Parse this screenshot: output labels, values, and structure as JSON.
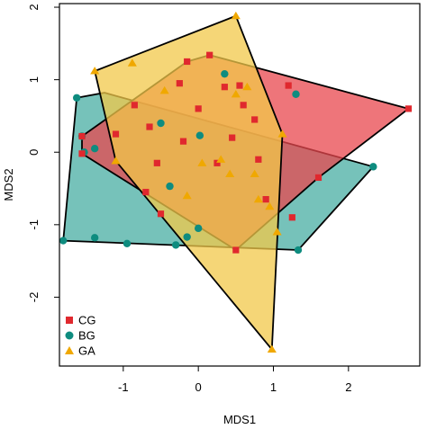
{
  "chart_data": {
    "type": "scatter",
    "title": "",
    "xlabel": "MDS1",
    "ylabel": "MDS2",
    "xlim": [
      -1.85,
      2.95
    ],
    "ylim": [
      -2.95,
      2.05
    ],
    "xticks": [
      -1,
      0,
      1,
      2
    ],
    "yticks": [
      -2,
      -1,
      0,
      1,
      2
    ],
    "xtick_labels": [
      "-1",
      "0",
      "1",
      "2"
    ],
    "ytick_labels": [
      "-2",
      "-1",
      "0",
      "1",
      "2"
    ],
    "grid": false,
    "legend_position": "bottom-left",
    "series": [
      {
        "name": "BG",
        "marker": "circle",
        "fill_color": "#0E8C7F",
        "hull_color": "#1A9A8C",
        "hull_opacity": 0.6,
        "hull": [
          [
            -1.62,
            0.75
          ],
          [
            -1.25,
            0.82
          ],
          [
            2.33,
            -0.2
          ],
          [
            1.33,
            -1.35
          ],
          [
            -1.8,
            -1.22
          ]
        ],
        "points": [
          [
            -1.62,
            0.75
          ],
          [
            -1.55,
            0.22
          ],
          [
            -1.52,
            0.0
          ],
          [
            -1.38,
            -1.18
          ],
          [
            -0.95,
            -1.26
          ],
          [
            -0.3,
            -1.28
          ],
          [
            -0.15,
            -1.17
          ],
          [
            0.0,
            -1.05
          ],
          [
            0.02,
            0.23
          ],
          [
            0.35,
            1.08
          ],
          [
            -0.38,
            -0.47
          ],
          [
            1.3,
            0.8
          ],
          [
            2.33,
            -0.2
          ],
          [
            1.33,
            -1.35
          ],
          [
            -1.8,
            -1.22
          ],
          [
            -1.38,
            0.05
          ],
          [
            -0.5,
            0.4
          ]
        ]
      },
      {
        "name": "CG",
        "marker": "square",
        "fill_color": "#E0282E",
        "hull_color": "#E8474E",
        "hull_opacity": 0.75,
        "hull": [
          [
            -0.15,
            1.25
          ],
          [
            0.15,
            1.34
          ],
          [
            2.8,
            0.6
          ],
          [
            1.6,
            -0.35
          ],
          [
            0.5,
            -1.35
          ],
          [
            -1.55,
            -0.02
          ],
          [
            -1.55,
            0.22
          ]
        ],
        "points": [
          [
            -0.15,
            1.25
          ],
          [
            0.15,
            1.34
          ],
          [
            2.8,
            0.6
          ],
          [
            1.6,
            -0.35
          ],
          [
            0.5,
            -1.35
          ],
          [
            -1.55,
            -0.02
          ],
          [
            -1.55,
            0.22
          ],
          [
            -0.25,
            0.95
          ],
          [
            0.35,
            0.9
          ],
          [
            0.55,
            0.92
          ],
          [
            1.2,
            0.92
          ],
          [
            0.6,
            0.65
          ],
          [
            0.75,
            0.45
          ],
          [
            -1.1,
            0.25
          ],
          [
            -0.85,
            0.65
          ],
          [
            -0.65,
            0.35
          ],
          [
            -0.55,
            -0.15
          ],
          [
            -0.7,
            -0.55
          ],
          [
            0.25,
            -0.15
          ],
          [
            0.8,
            -0.1
          ],
          [
            -0.2,
            0.15
          ],
          [
            0.45,
            0.2
          ],
          [
            -0.5,
            -0.85
          ],
          [
            0.9,
            -0.65
          ],
          [
            1.25,
            -0.9
          ],
          [
            0.0,
            0.6
          ]
        ]
      },
      {
        "name": "GA",
        "marker": "triangle",
        "fill_color": "#F0A800",
        "hull_color": "#F2C84A",
        "hull_opacity": 0.75,
        "hull": [
          [
            -1.38,
            1.12
          ],
          [
            0.5,
            1.88
          ],
          [
            1.12,
            0.25
          ],
          [
            0.98,
            -2.72
          ],
          [
            -1.1,
            -0.12
          ]
        ],
        "points": [
          [
            -1.38,
            1.12
          ],
          [
            0.5,
            1.88
          ],
          [
            1.12,
            0.25
          ],
          [
            0.98,
            -2.72
          ],
          [
            -1.1,
            -0.12
          ],
          [
            -0.88,
            1.23
          ],
          [
            -0.45,
            0.85
          ],
          [
            0.05,
            -0.15
          ],
          [
            0.42,
            -0.3
          ],
          [
            0.75,
            -0.3
          ],
          [
            0.8,
            -0.65
          ],
          [
            0.95,
            -0.75
          ],
          [
            0.3,
            -0.1
          ],
          [
            -0.15,
            -0.6
          ],
          [
            0.5,
            0.8
          ],
          [
            0.65,
            0.9
          ],
          [
            1.05,
            -1.1
          ]
        ]
      }
    ],
    "draw_order": [
      "BG",
      "CG",
      "GA"
    ],
    "legend_order": [
      "CG",
      "BG",
      "GA"
    ]
  }
}
